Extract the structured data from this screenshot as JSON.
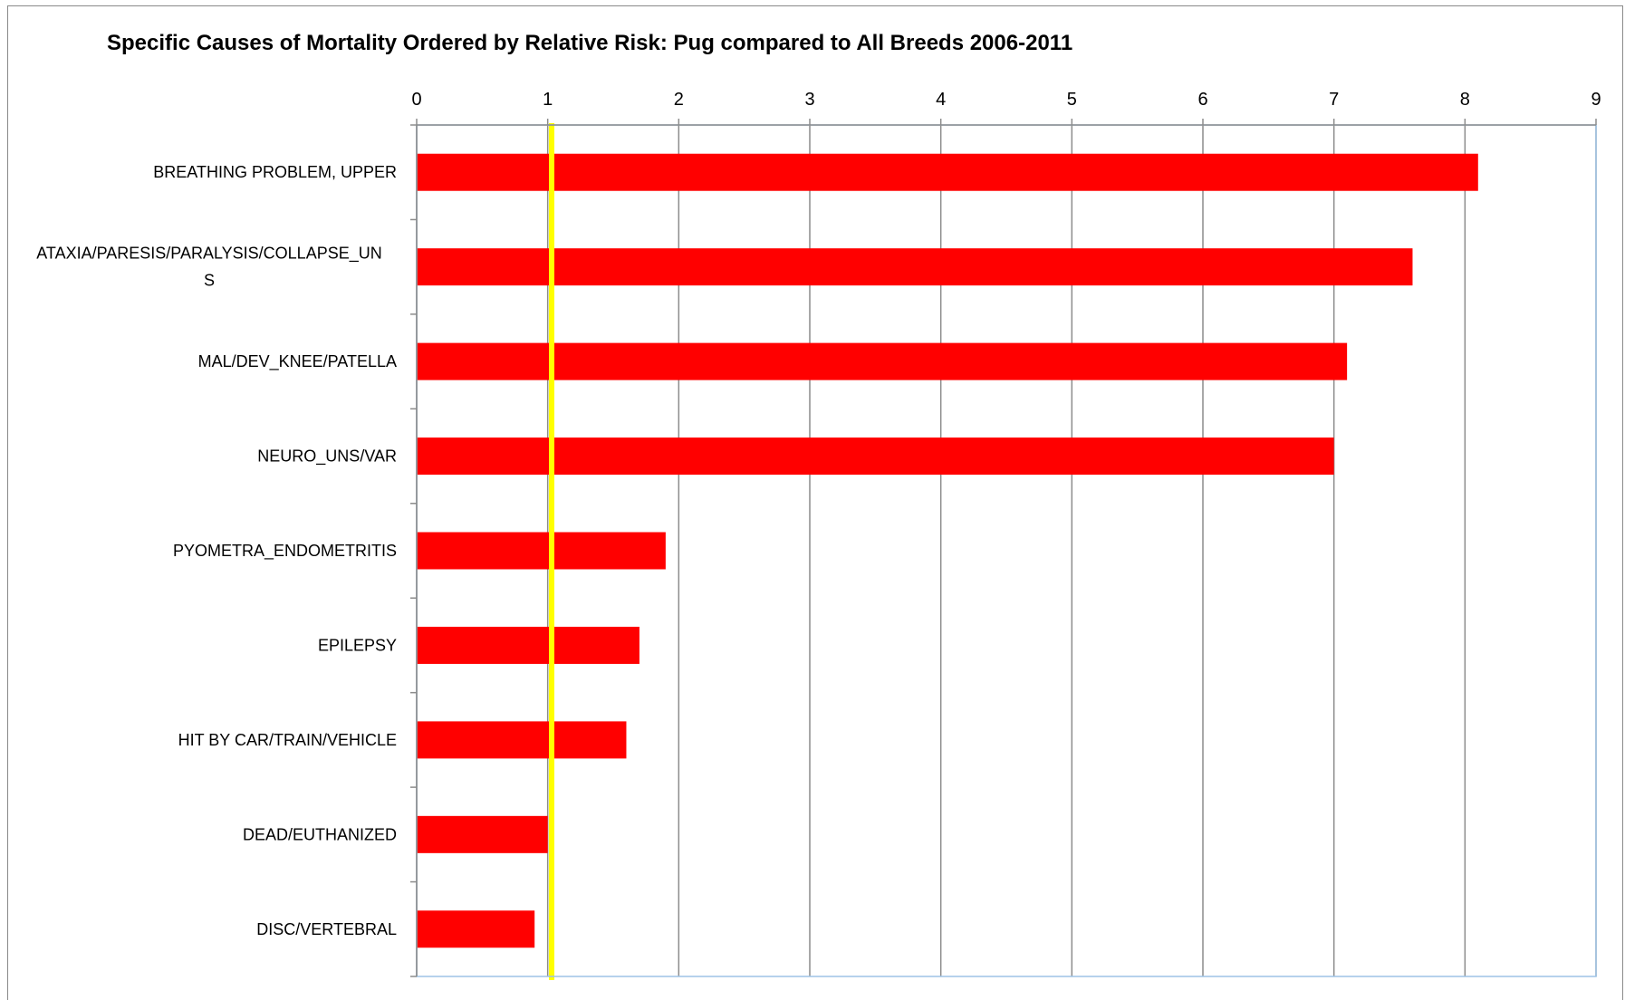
{
  "chart_data": {
    "type": "bar",
    "orientation": "horizontal",
    "title": "Specific Causes of Mortality Ordered by Relative Risk: Pug compared to All Breeds 2006-2011",
    "xlabel": "",
    "ylabel": "",
    "xlim": [
      0,
      9
    ],
    "x_ticks": [
      "0",
      "1",
      "2",
      "3",
      "4",
      "5",
      "6",
      "7",
      "8",
      "9"
    ],
    "categories": [
      "BREATHING PROBLEM, UPPER",
      "ATAXIA/PARESIS/PARALYSIS/COLLAPSE_UNS",
      "MAL/DEV_KNEE/PATELLA",
      "NEURO_UNS/VAR",
      "PYOMETRA_ENDOMETRITIS",
      "EPILEPSY",
      "HIT BY CAR/TRAIN/VEHICLE",
      "DEAD/EUTHANIZED",
      "DISC/VERTEBRAL"
    ],
    "category_label_lines": [
      [
        "BREATHING PROBLEM, UPPER"
      ],
      [
        "ATAXIA/PARESIS/PARALYSIS/COLLAPSE_UN",
        "S"
      ],
      [
        "MAL/DEV_KNEE/PATELLA"
      ],
      [
        "NEURO_UNS/VAR"
      ],
      [
        "PYOMETRA_ENDOMETRITIS"
      ],
      [
        "EPILEPSY"
      ],
      [
        "HIT BY CAR/TRAIN/VEHICLE"
      ],
      [
        "DEAD/EUTHANIZED"
      ],
      [
        "DISC/VERTEBRAL"
      ]
    ],
    "values": [
      8.1,
      7.6,
      7.1,
      7.0,
      1.9,
      1.7,
      1.6,
      1.0,
      0.9
    ],
    "reference_line": 1.03,
    "axis_position": "top",
    "grid": true,
    "legend": "none",
    "colors": {
      "bar": "#ff0000",
      "reference_line": "#ffff00",
      "grid": "#8c8c8c",
      "axis": "#8c8c8c",
      "plot_border": "#9dc3e6"
    }
  }
}
